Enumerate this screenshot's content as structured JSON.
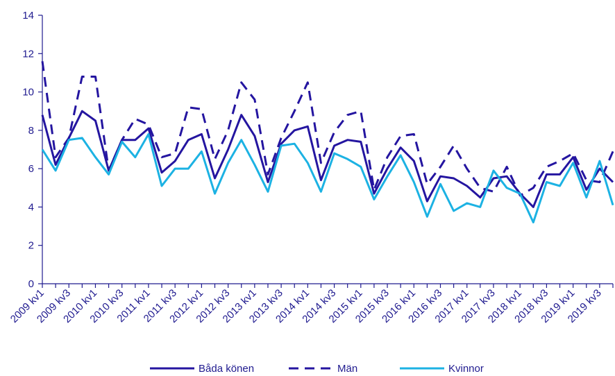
{
  "chart_data": {
    "type": "line",
    "title": "",
    "xlabel": "",
    "ylabel": "",
    "ylim": [
      0,
      14
    ],
    "yticks": [
      0,
      2,
      4,
      6,
      8,
      10,
      12,
      14
    ],
    "grid": false,
    "legend_position": "bottom",
    "categories": [
      "2009 kv1",
      "2009 kv2",
      "2009 kv3",
      "2009 kv4",
      "2010 kv1",
      "2010 kv2",
      "2010 kv3",
      "2010 kv4",
      "2011 kv1",
      "2011 kv2",
      "2011 kv3",
      "2011 kv4",
      "2012 kv1",
      "2012 kv2",
      "2012 kv3",
      "2012 kv4",
      "2013 kv1",
      "2013 kv2",
      "2013 kv3",
      "2013 kv4",
      "2014 kv1",
      "2014 kv2",
      "2014 kv3",
      "2014 kv4",
      "2015 kv1",
      "2015 kv2",
      "2015 kv3",
      "2015 kv4",
      "2016 kv1",
      "2016 kv2",
      "2016 kv3",
      "2016 kv4",
      "2017 kv1",
      "2017 kv2",
      "2017 kv3",
      "2017 kv4",
      "2018 kv1",
      "2018 kv2",
      "2018 kv3",
      "2018 kv4",
      "2019 kv1",
      "2019 kv2",
      "2019 kv3",
      "2019 kv4"
    ],
    "tick_labels": [
      "2009 kv1",
      "2009 kv3",
      "2010 kv1",
      "2010 kv3",
      "2011 kv1",
      "2011 kv3",
      "2012 kv1",
      "2012 kv3",
      "2013 kv1",
      "2013 kv3",
      "2014 kv1",
      "2014 kv3",
      "2015 kv1",
      "2015 kv3",
      "2016 kv1",
      "2016 kv3",
      "2017 kv1",
      "2017 kv3",
      "2018 kv1",
      "2018 kv3",
      "2019 kv1",
      "2019 kv3"
    ],
    "series": [
      {
        "name": "Båda könen",
        "color": "#2415a0",
        "dash": "solid",
        "values": [
          8.8,
          6.2,
          7.6,
          9.0,
          8.5,
          5.9,
          7.5,
          7.5,
          8.1,
          5.8,
          6.4,
          7.5,
          7.8,
          5.5,
          7.0,
          8.8,
          7.7,
          5.3,
          7.3,
          8.0,
          8.2,
          5.4,
          7.2,
          7.5,
          7.4,
          4.7,
          6.0,
          7.1,
          6.4,
          4.3,
          5.6,
          5.5,
          5.1,
          4.5,
          5.5,
          5.6,
          4.7,
          4.0,
          5.7,
          5.7,
          6.6,
          4.9,
          6.0,
          5.3
        ]
      },
      {
        "name": "Män",
        "color": "#2415a0",
        "dash": "dashed",
        "values": [
          11.6,
          6.6,
          7.6,
          10.8,
          10.8,
          5.9,
          7.5,
          8.6,
          8.3,
          6.6,
          6.8,
          9.2,
          9.1,
          6.5,
          8.0,
          10.5,
          9.6,
          5.7,
          7.6,
          9.0,
          10.5,
          6.3,
          7.9,
          8.8,
          9.0,
          4.9,
          6.6,
          7.7,
          7.8,
          5.2,
          6.1,
          7.2,
          6.0,
          5.0,
          4.8,
          6.1,
          4.6,
          5.0,
          6.1,
          6.4,
          6.8,
          5.4,
          5.3,
          6.9
        ]
      },
      {
        "name": "Kvinnor",
        "color": "#1cb2e3",
        "dash": "solid",
        "values": [
          7.0,
          5.9,
          7.5,
          7.6,
          6.6,
          5.7,
          7.4,
          6.6,
          7.8,
          5.1,
          6.0,
          6.0,
          6.9,
          4.7,
          6.3,
          7.5,
          6.2,
          4.8,
          7.2,
          7.3,
          6.3,
          4.8,
          6.8,
          6.5,
          6.1,
          4.4,
          5.6,
          6.7,
          5.3,
          3.5,
          5.2,
          3.8,
          4.2,
          4.0,
          5.9,
          5.0,
          4.7,
          3.2,
          5.3,
          5.1,
          6.3,
          4.5,
          6.4,
          4.1
        ]
      }
    ]
  }
}
